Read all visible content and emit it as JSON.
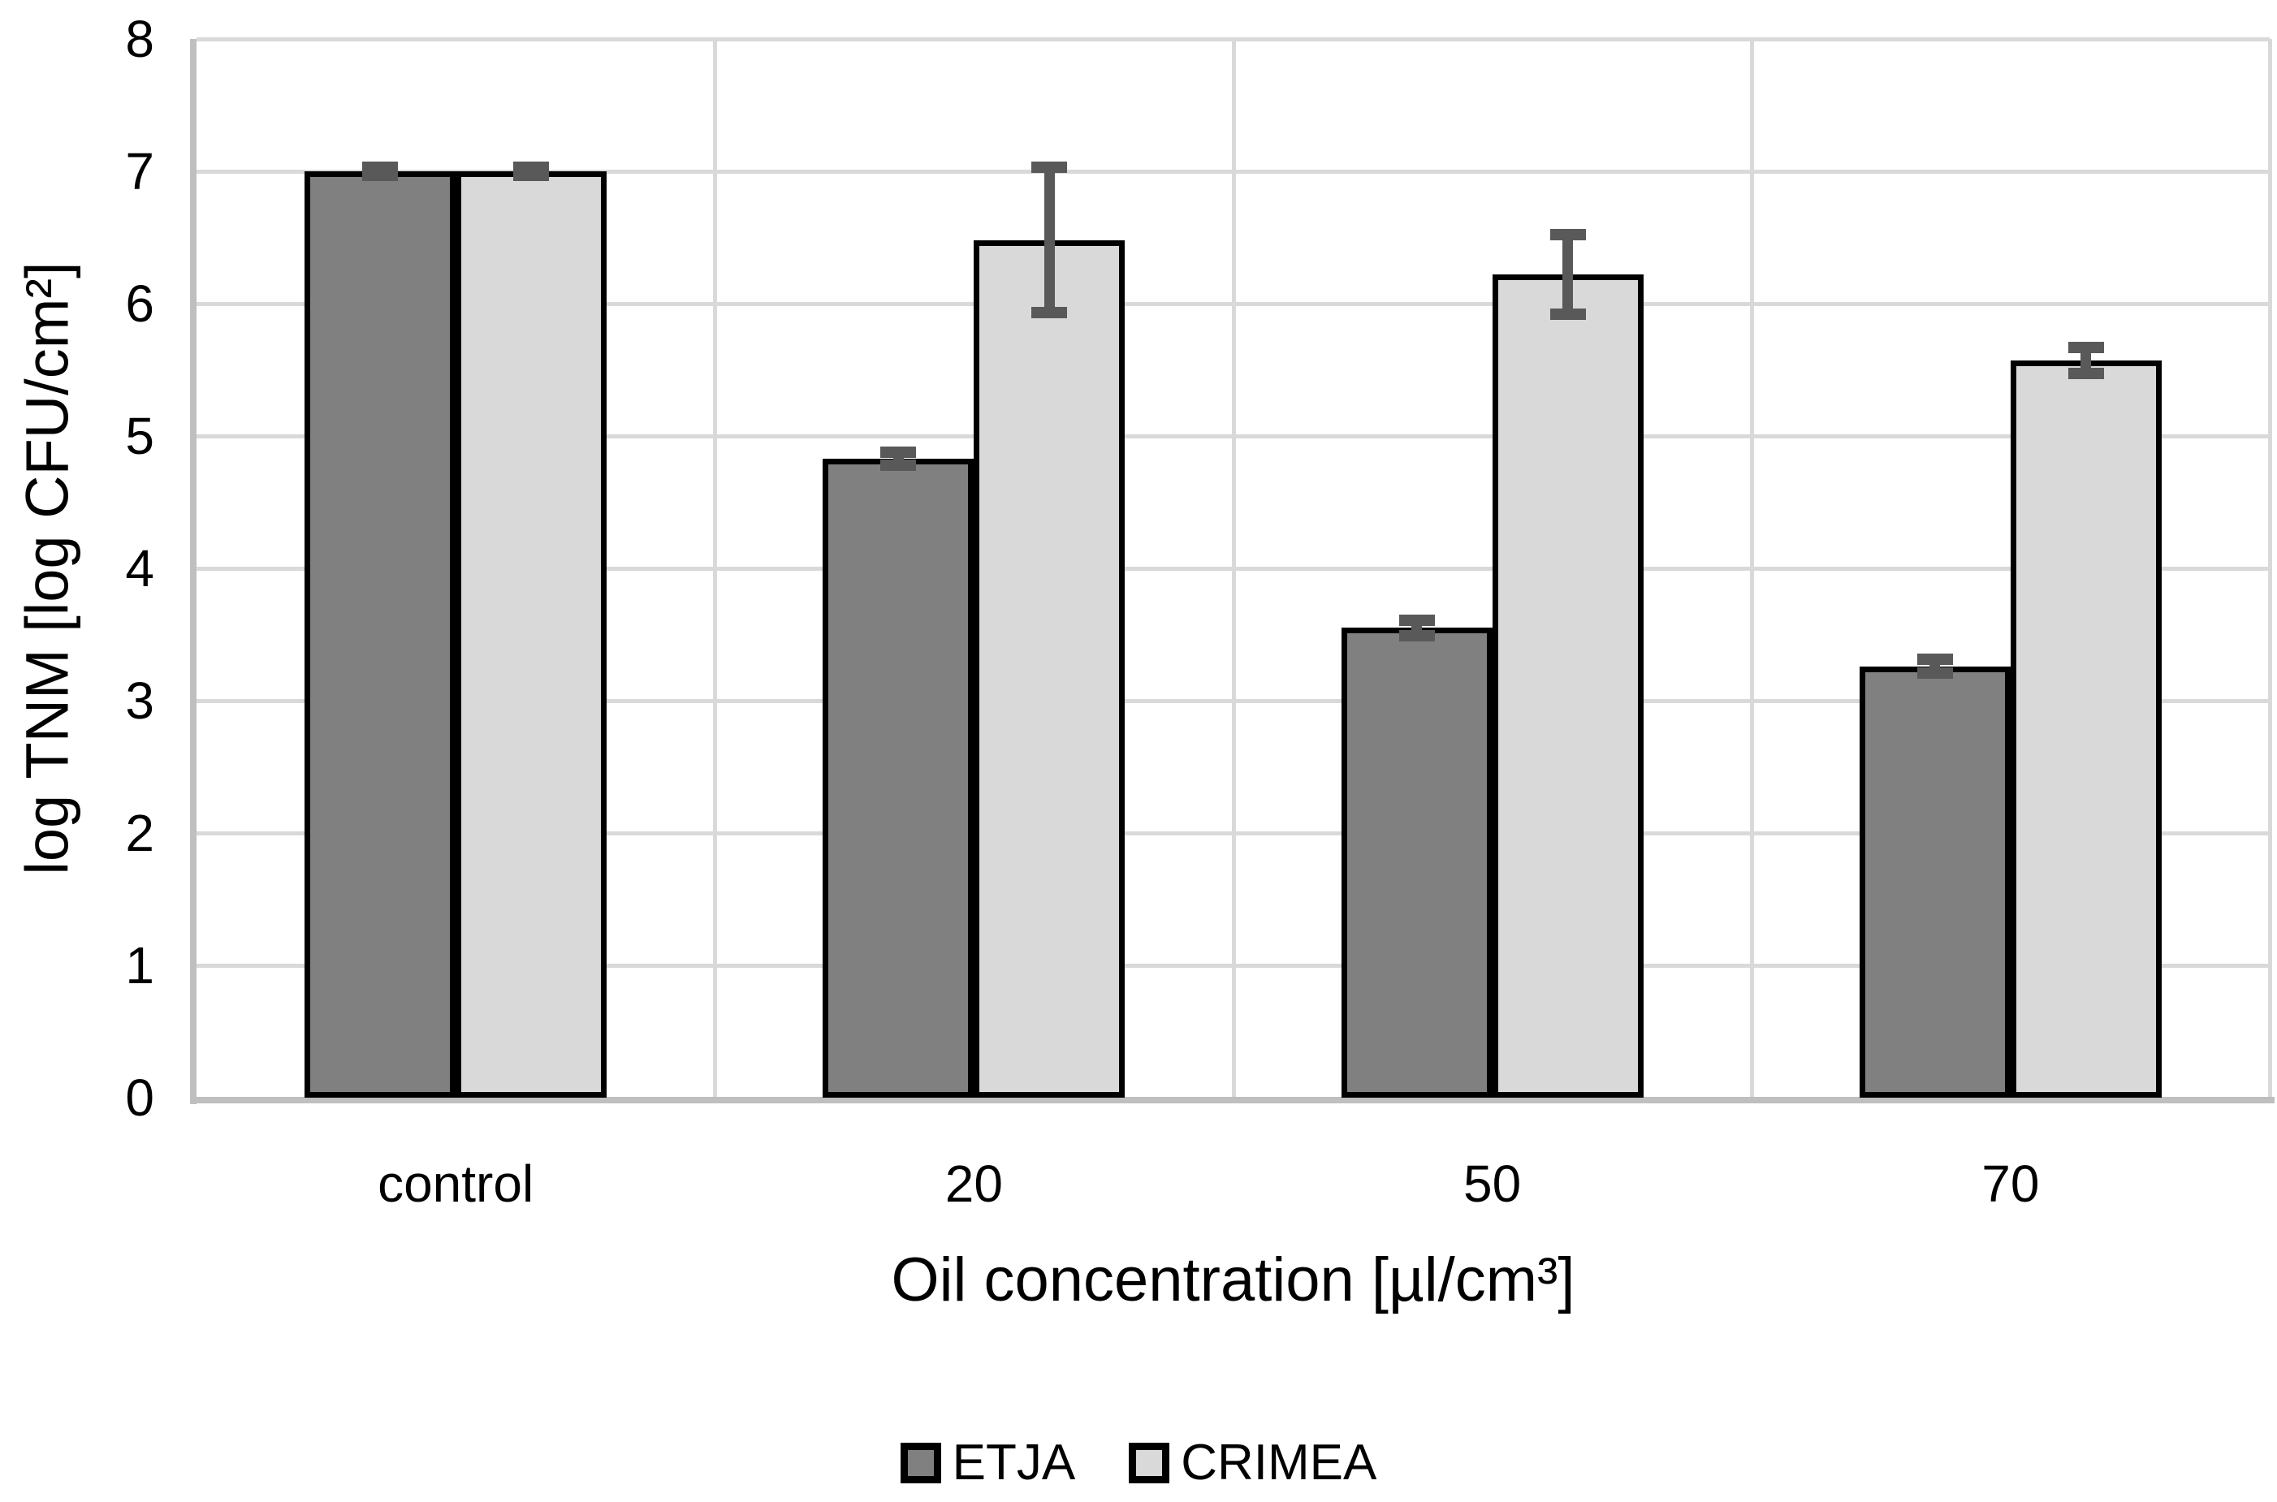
{
  "chart_data": {
    "type": "bar",
    "title": "",
    "categories": [
      "control",
      "20",
      "50",
      "70"
    ],
    "series": [
      {
        "name": "ETJA",
        "color": "#808080",
        "values": [
          7.0,
          4.83,
          3.55,
          3.26
        ],
        "errors": [
          0.03,
          0.05,
          0.06,
          0.05
        ]
      },
      {
        "name": "CRIMEA",
        "color": "#d9d9d9",
        "values": [
          7.0,
          6.48,
          6.22,
          5.57
        ],
        "errors": [
          0.03,
          0.55,
          0.3,
          0.1
        ]
      }
    ],
    "xlabel": "Oil concentration [µl/cm³]",
    "ylabel": "log TNM [log CFU/cm²]",
    "ylim": [
      0,
      8
    ],
    "yticks": [
      "0",
      "1",
      "2",
      "3",
      "4",
      "5",
      "6",
      "7",
      "8"
    ],
    "grid": true,
    "legend_position": "bottom",
    "colors": {
      "bar_border": "#000000",
      "error_bar": "#595959",
      "gridline": "#d9d9d9",
      "axis_line": "#bfbfbf",
      "text": "#000000",
      "background": "#ffffff"
    }
  }
}
